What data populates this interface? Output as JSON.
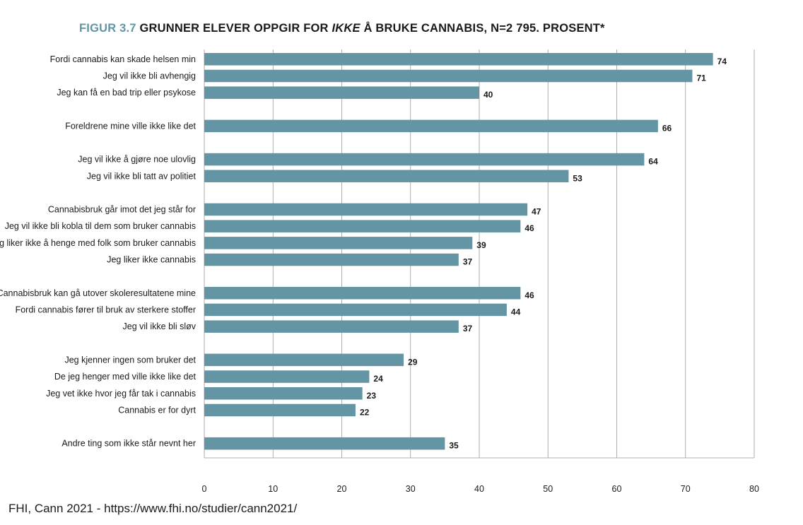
{
  "title": {
    "figure_label": "FIGUR 3.7",
    "text_before": "GRUNNER ELEVER OPPGIR FOR",
    "text_italic": "IKKE",
    "text_after": "Å BRUKE CANNABIS, N=2 795. PROSENT*"
  },
  "source": "FHI, Cann 2021 - https://www.fhi.no/studier/cann2021/",
  "colors": {
    "bar": "#6395a4",
    "grid": "#9a9a9a",
    "title_accent": "#6395a4"
  },
  "chart_data": {
    "type": "bar",
    "orientation": "horizontal",
    "xlim": [
      0,
      80
    ],
    "xticks": [
      0,
      10,
      20,
      30,
      40,
      50,
      60,
      70,
      80
    ],
    "grid": true,
    "groups": [
      [
        {
          "label": "Fordi cannabis kan skade helsen min",
          "value": 74
        },
        {
          "label": "Jeg vil ikke bli avhengig",
          "value": 71
        },
        {
          "label": "Jeg kan få en bad trip eller psykose",
          "value": 40
        }
      ],
      [
        {
          "label": "Foreldrene mine ville ikke like det",
          "value": 66
        }
      ],
      [
        {
          "label": "Jeg vil ikke å gjøre noe ulovlig",
          "value": 64
        },
        {
          "label": "Jeg vil ikke bli tatt av politiet",
          "value": 53
        }
      ],
      [
        {
          "label": "Cannabisbruk går imot det jeg står for",
          "value": 47
        },
        {
          "label": "Jeg vil ikke bli kobla til dem som bruker cannabis",
          "value": 46
        },
        {
          "label": "Jeg liker ikke å henge med folk som bruker cannabis",
          "value": 39
        },
        {
          "label": "Jeg liker ikke cannabis",
          "value": 37
        }
      ],
      [
        {
          "label": "Cannabisbruk kan gå utover skoleresultatene mine",
          "value": 46
        },
        {
          "label": "Fordi cannabis fører til bruk av sterkere stoffer",
          "value": 44
        },
        {
          "label": "Jeg vil ikke bli sløv",
          "value": 37
        }
      ],
      [
        {
          "label": "Jeg kjenner ingen som bruker det",
          "value": 29
        },
        {
          "label": "De jeg henger med ville ikke like det",
          "value": 24
        },
        {
          "label": "Jeg vet ikke hvor jeg får tak i cannabis",
          "value": 23
        },
        {
          "label": "Cannabis er for dyrt",
          "value": 22
        }
      ],
      [
        {
          "label": "Andre ting som ikke står nevnt her",
          "value": 35
        }
      ]
    ]
  }
}
